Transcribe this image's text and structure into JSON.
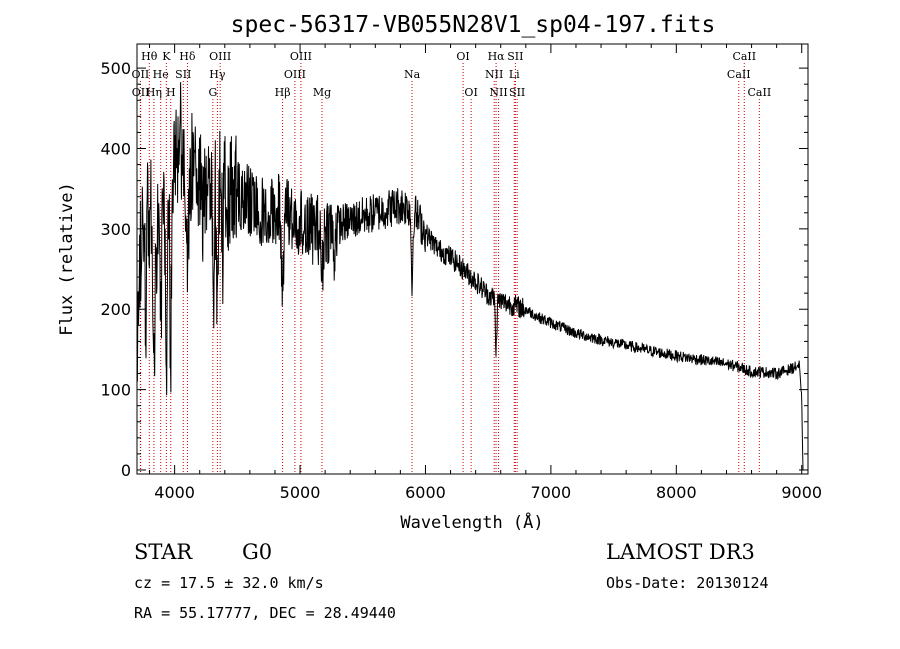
{
  "chart_data": {
    "type": "line",
    "title": "spec-56317-VB055N28V1_sp04-197.fits",
    "xlabel": "Wavelength (Å)",
    "ylabel": "Flux (relative)",
    "xlim": [
      3700,
      9050
    ],
    "ylim": [
      -5,
      530
    ],
    "xticks": [
      4000,
      5000,
      6000,
      7000,
      8000,
      9000
    ],
    "yticks": [
      0,
      100,
      200,
      300,
      400,
      500
    ],
    "grid": false,
    "anchors": [
      [
        3700,
        150
      ],
      [
        3720,
        250
      ],
      [
        3760,
        330
      ],
      [
        3800,
        360
      ],
      [
        3850,
        280
      ],
      [
        3900,
        350
      ],
      [
        3950,
        360
      ],
      [
        4000,
        390
      ],
      [
        4050,
        410
      ],
      [
        4100,
        380
      ],
      [
        4200,
        370
      ],
      [
        4300,
        355
      ],
      [
        4400,
        350
      ],
      [
        4500,
        340
      ],
      [
        4600,
        335
      ],
      [
        4700,
        320
      ],
      [
        4800,
        325
      ],
      [
        4900,
        320
      ],
      [
        5000,
        310
      ],
      [
        5100,
        300
      ],
      [
        5200,
        300
      ],
      [
        5300,
        305
      ],
      [
        5400,
        310
      ],
      [
        5500,
        315
      ],
      [
        5600,
        320
      ],
      [
        5700,
        325
      ],
      [
        5800,
        330
      ],
      [
        5900,
        325
      ],
      [
        5950,
        310
      ],
      [
        6000,
        295
      ],
      [
        6100,
        275
      ],
      [
        6200,
        265
      ],
      [
        6300,
        250
      ],
      [
        6400,
        235
      ],
      [
        6500,
        218
      ],
      [
        6600,
        210
      ],
      [
        6700,
        205
      ],
      [
        6800,
        200
      ],
      [
        6900,
        190
      ],
      [
        7000,
        183
      ],
      [
        7200,
        170
      ],
      [
        7400,
        162
      ],
      [
        7600,
        155
      ],
      [
        7800,
        148
      ],
      [
        8000,
        142
      ],
      [
        8200,
        137
      ],
      [
        8400,
        132
      ],
      [
        8500,
        128
      ],
      [
        8600,
        122
      ],
      [
        8700,
        122
      ],
      [
        8800,
        120
      ],
      [
        8900,
        125
      ],
      [
        8980,
        130
      ],
      [
        9000,
        85
      ],
      [
        9010,
        0
      ]
    ],
    "absorption": [
      {
        "x": 3770,
        "depth": 150,
        "width": 8
      },
      {
        "x": 3798,
        "depth": 120,
        "width": 8
      },
      {
        "x": 3835,
        "depth": 170,
        "width": 10
      },
      {
        "x": 3889,
        "depth": 160,
        "width": 10
      },
      {
        "x": 3934,
        "depth": 230,
        "width": 9
      },
      {
        "x": 3969,
        "depth": 230,
        "width": 9
      },
      {
        "x": 4102,
        "depth": 150,
        "width": 12
      },
      {
        "x": 4226,
        "depth": 90,
        "width": 8
      },
      {
        "x": 4308,
        "depth": 150,
        "width": 9
      },
      {
        "x": 4341,
        "depth": 130,
        "width": 10
      },
      {
        "x": 4384,
        "depth": 70,
        "width": 8
      },
      {
        "x": 4861,
        "depth": 90,
        "width": 12
      },
      {
        "x": 5175,
        "depth": 60,
        "width": 12
      },
      {
        "x": 5270,
        "depth": 40,
        "width": 10
      },
      {
        "x": 5893,
        "depth": 95,
        "width": 9
      },
      {
        "x": 6563,
        "depth": 65,
        "width": 8
      }
    ],
    "noise_bands": [
      {
        "from": 3700,
        "to": 4500,
        "amp": 75
      },
      {
        "from": 4500,
        "to": 5300,
        "amp": 45
      },
      {
        "from": 5300,
        "to": 6000,
        "amp": 25
      },
      {
        "from": 6000,
        "to": 6800,
        "amp": 14
      },
      {
        "from": 6800,
        "to": 9000,
        "amp": 7
      }
    ],
    "annotations": [
      {
        "label": "Hθ",
        "x": 3798,
        "row": 0
      },
      {
        "label": "OII",
        "x": 3727,
        "row": 1
      },
      {
        "label": "OII",
        "x": 3729,
        "row": 2
      },
      {
        "label": "Hη",
        "x": 3835,
        "row": 2
      },
      {
        "label": "He",
        "x": 3889,
        "row": 1
      },
      {
        "label": "K",
        "x": 3934,
        "row": 0
      },
      {
        "label": "H",
        "x": 3969,
        "row": 2
      },
      {
        "label": "Hδ",
        "x": 4102,
        "row": 0
      },
      {
        "label": "SII",
        "x": 4069,
        "row": 1
      },
      {
        "label": "OIII",
        "x": 4363,
        "row": 0
      },
      {
        "label": "Hγ",
        "x": 4341,
        "row": 1
      },
      {
        "label": "G",
        "x": 4305,
        "row": 2
      },
      {
        "label": "Hβ",
        "x": 4861,
        "row": 2
      },
      {
        "label": "OIII",
        "x": 5007,
        "row": 0
      },
      {
        "label": "OIII",
        "x": 4959,
        "row": 1
      },
      {
        "label": "Mg",
        "x": 5175,
        "row": 2
      },
      {
        "label": "Na",
        "x": 5893,
        "row": 1
      },
      {
        "label": "OI",
        "x": 6300,
        "row": 0
      },
      {
        "label": "OI",
        "x": 6364,
        "row": 2
      },
      {
        "label": "Hα",
        "x": 6563,
        "row": 0
      },
      {
        "label": "NII",
        "x": 6548,
        "row": 1
      },
      {
        "label": "NII",
        "x": 6583,
        "row": 2
      },
      {
        "label": "SII",
        "x": 6717,
        "row": 0
      },
      {
        "label": "Li",
        "x": 6708,
        "row": 1
      },
      {
        "label": "SII",
        "x": 6731,
        "row": 2
      },
      {
        "label": "CaII",
        "x": 8542,
        "row": 0
      },
      {
        "label": "CaII",
        "x": 8498,
        "row": 1
      },
      {
        "label": "CaII",
        "x": 8662,
        "row": 2
      }
    ]
  },
  "colors": {
    "line": "#000000",
    "marker": "#cc0000",
    "axes": "#000000"
  },
  "info": {
    "object_class": "STAR",
    "subclass": "G0",
    "survey": "LAMOST DR3",
    "redshift": "cz =  17.5 ± 32.0 km/s",
    "obs_date": "Obs-Date: 20130124",
    "coords": "RA =  55.17777, DEC =  28.49440"
  }
}
